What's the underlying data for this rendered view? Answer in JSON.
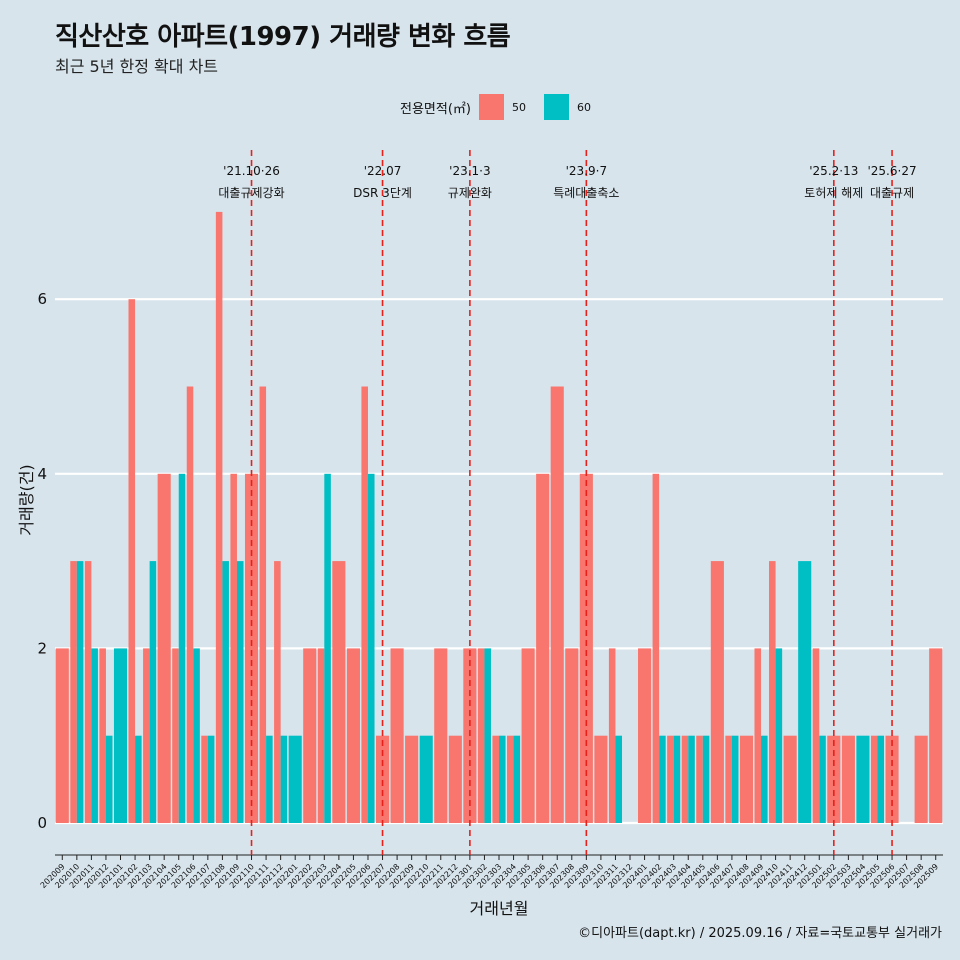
{
  "title": "직산산호 아파트(1997) 거래량 변화 흐름",
  "subtitle": "최근 5년 한정 확대 차트",
  "legend": {
    "title": "전용면적(㎡)",
    "items": [
      {
        "label": "50",
        "color": "#F8766D"
      },
      {
        "label": "60",
        "color": "#00BFC4"
      }
    ]
  },
  "caption": "©디아파트(dapt.kr) / 2025.09.16 / 자료=국토교통부 실거래가",
  "chart_data": {
    "type": "bar",
    "stacking": "dodge",
    "xlabel": "거래년월",
    "ylabel": "거래량(건)",
    "ylim": [
      0,
      7
    ],
    "yticks": [
      0,
      2,
      4,
      6
    ],
    "grid": "horizontal",
    "legend_position": "top",
    "categories": [
      "202009",
      "202010",
      "202011",
      "202012",
      "202101",
      "202102",
      "202103",
      "202104",
      "202105",
      "202106",
      "202107",
      "202108",
      "202109",
      "202110",
      "202111",
      "202112",
      "202201",
      "202202",
      "202203",
      "202204",
      "202205",
      "202206",
      "202207",
      "202208",
      "202209",
      "202210",
      "202211",
      "202212",
      "202301",
      "202302",
      "202303",
      "202304",
      "202305",
      "202306",
      "202307",
      "202308",
      "202309",
      "202310",
      "202311",
      "202312",
      "202401",
      "202402",
      "202403",
      "202404",
      "202405",
      "202406",
      "202407",
      "202408",
      "202409",
      "202410",
      "202411",
      "202412",
      "202501",
      "202502",
      "202503",
      "202504",
      "202505",
      "202506",
      "202507",
      "202508",
      "202509"
    ],
    "series": [
      {
        "name": "50",
        "color": "#F8766D",
        "values": [
          2,
          3,
          3,
          2,
          null,
          6,
          2,
          4,
          2,
          5,
          1,
          7,
          4,
          4,
          5,
          3,
          null,
          2,
          2,
          3,
          2,
          5,
          1,
          2,
          1,
          null,
          2,
          1,
          2,
          2,
          1,
          1,
          2,
          4,
          5,
          2,
          4,
          1,
          2,
          null,
          2,
          4,
          1,
          1,
          1,
          3,
          1,
          1,
          2,
          3,
          1,
          null,
          2,
          1,
          1,
          null,
          1,
          1,
          null,
          1,
          2
        ]
      },
      {
        "name": "60",
        "color": "#00BFC4",
        "values": [
          null,
          3,
          2,
          1,
          2,
          1,
          3,
          null,
          4,
          2,
          1,
          3,
          3,
          null,
          1,
          1,
          1,
          null,
          4,
          null,
          null,
          4,
          null,
          null,
          null,
          1,
          null,
          null,
          null,
          2,
          1,
          1,
          null,
          null,
          null,
          null,
          null,
          null,
          1,
          null,
          null,
          1,
          1,
          1,
          1,
          null,
          1,
          null,
          1,
          2,
          null,
          3,
          1,
          null,
          null,
          1,
          1,
          null,
          null,
          null,
          null
        ]
      }
    ],
    "annotations": [
      {
        "category": "202110",
        "date": "'21.10·26",
        "label": "대출규제강화"
      },
      {
        "category": "202207",
        "date": "'22.07",
        "label": "DSR 3단계"
      },
      {
        "category": "202301",
        "date": "'23.1·3",
        "label": "규제완화"
      },
      {
        "category": "202309",
        "date": "'23.9·7",
        "label": "특례대출축소"
      },
      {
        "category": "202502",
        "date": "'25.2·13",
        "label": "토허제 해제"
      },
      {
        "category": "202506",
        "date": "'25.6·27",
        "label": "대출규제"
      }
    ]
  }
}
